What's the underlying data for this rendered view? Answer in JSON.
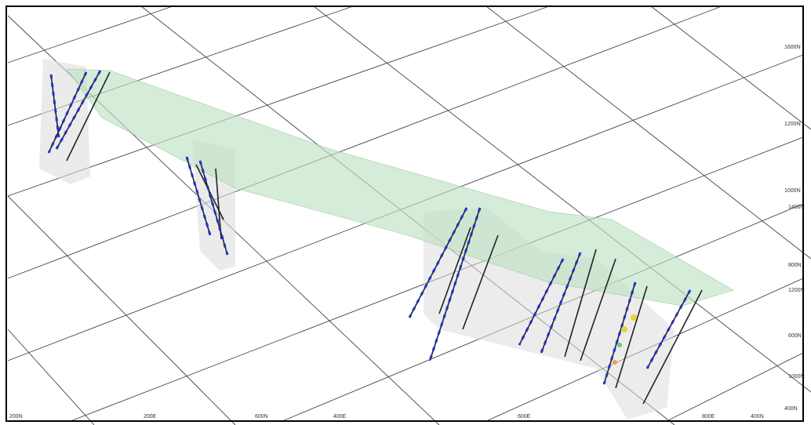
{
  "grid_labels": {
    "bottom": [
      "200N",
      "200E",
      "600N",
      "400E",
      "600E",
      "800E",
      "400N",
      "400N"
    ],
    "right": [
      "1600N",
      "1200N",
      "1000N",
      "1400N",
      "800N",
      "1200N",
      "600N",
      "1000N"
    ]
  }
}
